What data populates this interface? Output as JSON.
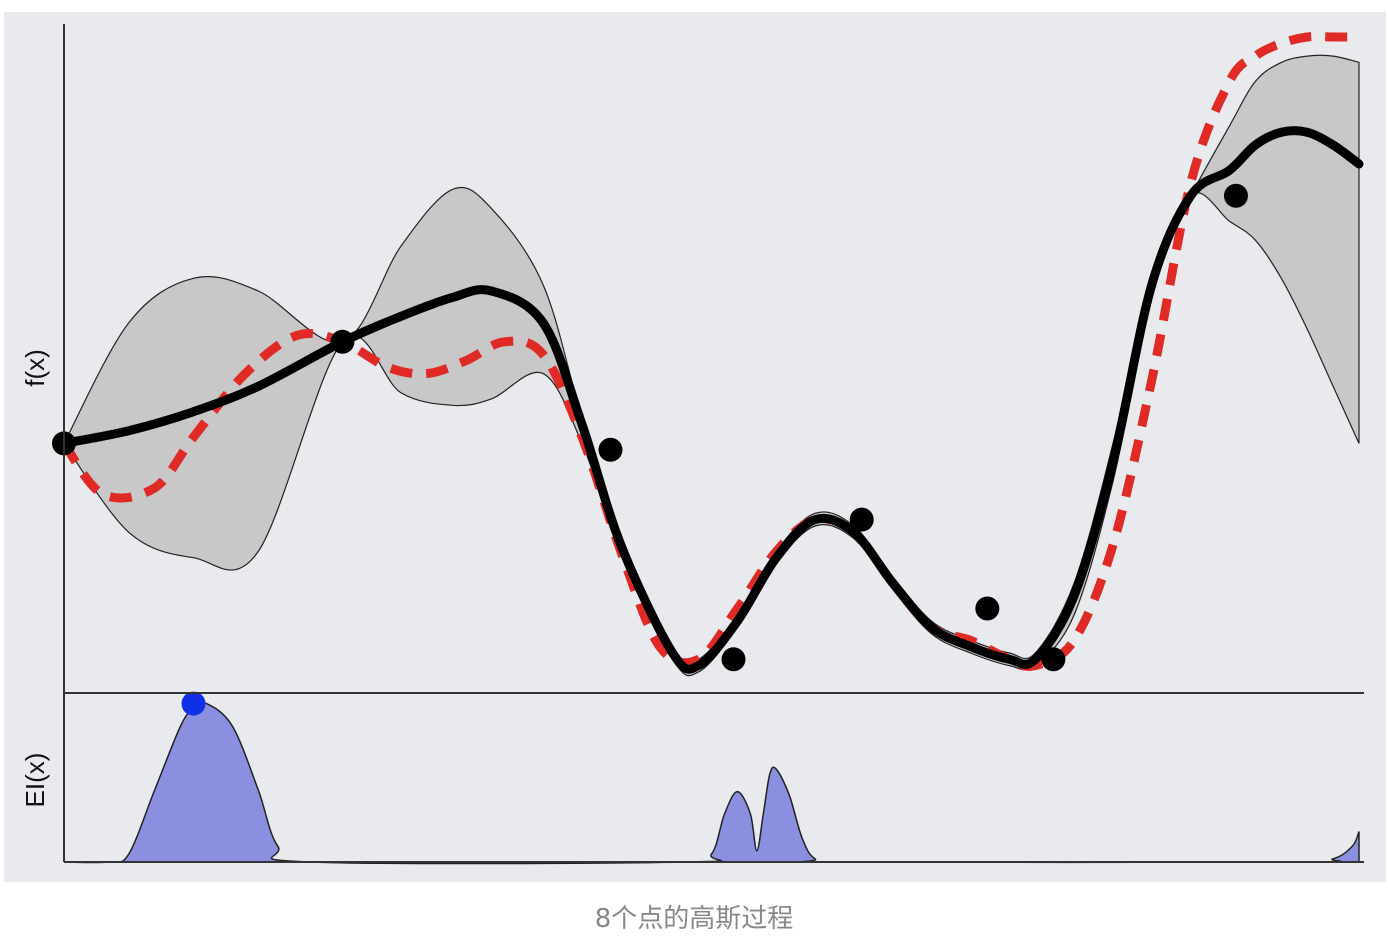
{
  "caption": "8个点的高斯过程",
  "colors": {
    "background": "#e9eaee",
    "band": "#c8c8c8",
    "mean": "#000000",
    "truth": "#e02a26",
    "ei_fill": "#8b8fe0",
    "ei_point": "#1030e8",
    "axis": "#333333"
  },
  "chart_data": [
    {
      "type": "line",
      "title": "",
      "ylabel": "f(x)",
      "xlabel": "",
      "xlim": [
        0,
        1
      ],
      "ylim": [
        0,
        1
      ],
      "grid": false,
      "legend": "none",
      "series": [
        {
          "role": "truth",
          "style": "dashed",
          "x": [
            0,
            0.03,
            0.07,
            0.1,
            0.14,
            0.18,
            0.215,
            0.25,
            0.28,
            0.31,
            0.34,
            0.37,
            0.4,
            0.43,
            0.46,
            0.49,
            0.52,
            0.55,
            0.58,
            0.61,
            0.64,
            0.67,
            0.7,
            0.73,
            0.75,
            0.78,
            0.81,
            0.84,
            0.87,
            0.9,
            0.92,
            0.94,
            0.96,
            0.98,
            1.0
          ],
          "y": [
            0.36,
            0.28,
            0.29,
            0.37,
            0.47,
            0.53,
            0.52,
            0.48,
            0.47,
            0.49,
            0.52,
            0.5,
            0.37,
            0.19,
            0.04,
            0.02,
            0.1,
            0.19,
            0.24,
            0.22,
            0.14,
            0.07,
            0.05,
            0.02,
            0.01,
            0.05,
            0.2,
            0.46,
            0.77,
            0.93,
            0.97,
            0.99,
            1.0,
            1.0,
            1.0
          ]
        },
        {
          "role": "mean",
          "style": "solid",
          "x": [
            0,
            0.05,
            0.1,
            0.15,
            0.215,
            0.26,
            0.3,
            0.33,
            0.37,
            0.4,
            0.43,
            0.47,
            0.49,
            0.52,
            0.55,
            0.58,
            0.61,
            0.64,
            0.67,
            0.7,
            0.73,
            0.75,
            0.78,
            0.81,
            0.84,
            0.87,
            0.9,
            0.92,
            0.94,
            0.96,
            0.98,
            1.0
          ],
          "y": [
            0.36,
            0.38,
            0.41,
            0.45,
            0.52,
            0.56,
            0.59,
            0.6,
            0.55,
            0.39,
            0.2,
            0.03,
            0.01,
            0.08,
            0.18,
            0.24,
            0.22,
            0.14,
            0.07,
            0.04,
            0.02,
            0.02,
            0.12,
            0.33,
            0.61,
            0.75,
            0.79,
            0.83,
            0.85,
            0.85,
            0.83,
            0.8
          ]
        }
      ],
      "band": {
        "x": [
          0,
          0.05,
          0.1,
          0.15,
          0.215,
          0.26,
          0.3,
          0.33,
          0.37,
          0.4,
          0.43,
          0.47,
          0.49,
          0.52,
          0.55,
          0.58,
          0.61,
          0.64,
          0.67,
          0.7,
          0.73,
          0.75,
          0.78,
          0.81,
          0.84,
          0.87,
          0.9,
          0.92,
          0.94,
          0.96,
          0.98,
          1.0
        ],
        "upper": [
          0.36,
          0.55,
          0.62,
          0.6,
          0.52,
          0.67,
          0.76,
          0.73,
          0.61,
          0.4,
          0.21,
          0.04,
          0.02,
          0.09,
          0.19,
          0.25,
          0.23,
          0.15,
          0.08,
          0.05,
          0.03,
          0.03,
          0.14,
          0.36,
          0.63,
          0.75,
          0.86,
          0.93,
          0.96,
          0.97,
          0.97,
          0.96
        ],
        "lower": [
          0.36,
          0.22,
          0.18,
          0.19,
          0.52,
          0.44,
          0.42,
          0.43,
          0.47,
          0.36,
          0.19,
          0.02,
          0.0,
          0.07,
          0.17,
          0.23,
          0.21,
          0.13,
          0.06,
          0.03,
          0.01,
          0.01,
          0.09,
          0.3,
          0.59,
          0.75,
          0.71,
          0.68,
          0.62,
          0.54,
          0.45,
          0.36
        ]
      },
      "observations": {
        "x": [
          0.0,
          0.215,
          0.422,
          0.517,
          0.616,
          0.713,
          0.764,
          0.905
        ],
        "y": [
          0.36,
          0.52,
          0.35,
          0.02,
          0.24,
          0.1,
          0.02,
          0.75
        ]
      }
    },
    {
      "type": "area",
      "title": "",
      "ylabel": "EI(x)",
      "xlabel": "",
      "xlim": [
        0,
        1
      ],
      "ylim": [
        0,
        1
      ],
      "grid": false,
      "legend": "none",
      "series": [
        {
          "role": "ei",
          "x": [
            0,
            0.035,
            0.05,
            0.07,
            0.09,
            0.1,
            0.11,
            0.13,
            0.15,
            0.165,
            0.19,
            0.48,
            0.5,
            0.51,
            0.52,
            0.53,
            0.535,
            0.54,
            0.545,
            0.55,
            0.56,
            0.57,
            0.58,
            0.6,
            0.95,
            0.98,
            0.995,
            1.0
          ],
          "y": [
            0,
            0,
            0.05,
            0.45,
            0.85,
            0.96,
            0.99,
            0.85,
            0.45,
            0.1,
            0,
            0,
            0.05,
            0.3,
            0.44,
            0.3,
            0.07,
            0.3,
            0.55,
            0.58,
            0.42,
            0.15,
            0.02,
            0,
            0,
            0.02,
            0.1,
            0.19
          ]
        }
      ],
      "argmax": {
        "x": 0.1,
        "y": 0.99
      }
    }
  ]
}
